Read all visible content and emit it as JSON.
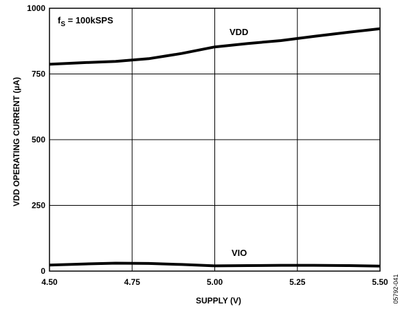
{
  "chart_data": {
    "type": "line",
    "xlabel": "SUPPLY (V)",
    "ylabel": "VDD OPERATING CURRENT (µA)",
    "xlim": [
      4.5,
      5.5
    ],
    "ylim": [
      0,
      1000
    ],
    "x_ticks": [
      "4.50",
      "4.75",
      "5.00",
      "5.25",
      "5.50"
    ],
    "y_ticks": [
      "0",
      "250",
      "500",
      "750",
      "1000"
    ],
    "grid": true,
    "annotation": {
      "main": "f",
      "sub": "S",
      "rest": " = 100kSPS"
    },
    "series": [
      {
        "name": "VDD",
        "x": [
          4.5,
          4.6,
          4.7,
          4.8,
          4.9,
          5.0,
          5.1,
          5.2,
          5.3,
          5.4,
          5.5
        ],
        "y": [
          787,
          793,
          798,
          808,
          828,
          853,
          866,
          877,
          893,
          908,
          922
        ]
      },
      {
        "name": "VIO",
        "x": [
          4.5,
          4.6,
          4.7,
          4.8,
          4.9,
          5.0,
          5.1,
          5.2,
          5.3,
          5.4,
          5.5
        ],
        "y": [
          23,
          27,
          30,
          29,
          25,
          20,
          21,
          22,
          22,
          21,
          19
        ]
      }
    ],
    "figure_id": "05792-041"
  }
}
